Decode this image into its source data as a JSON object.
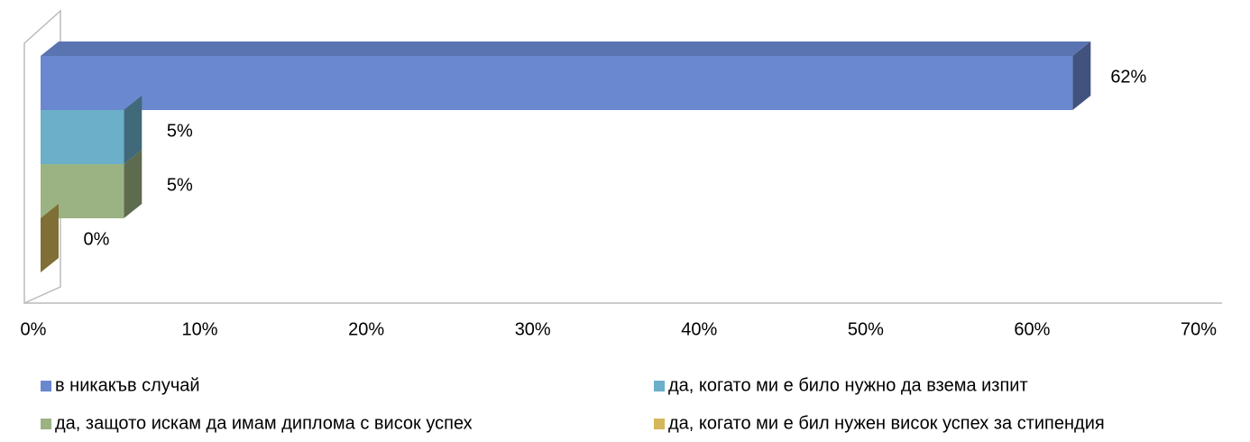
{
  "chart_data": {
    "type": "bar3d_horizontal",
    "xlim": [
      0,
      70
    ],
    "xticks": [
      {
        "value": 0,
        "label": "0%"
      },
      {
        "value": 10,
        "label": "10%"
      },
      {
        "value": 20,
        "label": "20%"
      },
      {
        "value": 30,
        "label": "30%"
      },
      {
        "value": 40,
        "label": "40%"
      },
      {
        "value": 50,
        "label": "50%"
      },
      {
        "value": 60,
        "label": "60%"
      },
      {
        "value": 70,
        "label": "70%"
      }
    ],
    "series": [
      {
        "name": "в никакъв случай",
        "color": "#6a88d0",
        "values": [
          62
        ],
        "value_labels": [
          "62%"
        ]
      },
      {
        "name": "да, когато ми е било нужно да взема изпит",
        "color": "#6bafc9",
        "values": [
          5
        ],
        "value_labels": [
          "5%"
        ]
      },
      {
        "name": "да, защото искам да имам диплома с висок успех",
        "color": "#9bb383",
        "values": [
          5
        ],
        "value_labels": [
          "5%"
        ]
      },
      {
        "name": "да, когато ми е бил нужен висок успех за стипендия",
        "color": "#d4b75a",
        "values": [
          0
        ],
        "value_labels": [
          "0%"
        ]
      }
    ],
    "legend": "bottom"
  }
}
